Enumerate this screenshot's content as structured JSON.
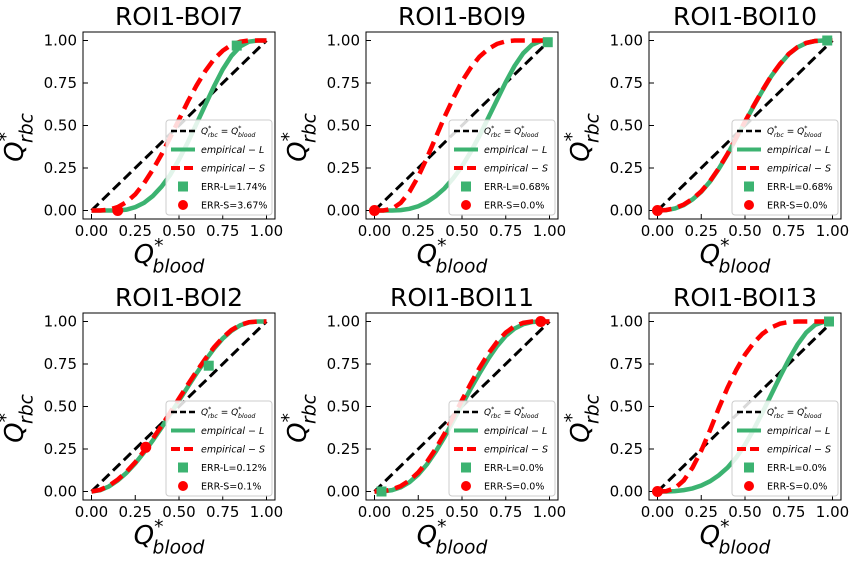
{
  "figure": {
    "colors": {
      "identity": "#000000",
      "empirical_L": "#3cb371",
      "empirical_S": "#ff0000",
      "axis": "#000000"
    },
    "legend_labels": {
      "identity": "Q*rbc = Q*blood",
      "empirical_L": "empirical − L",
      "empirical_S": "empirical − S"
    },
    "xlabel": "Q*blood",
    "ylabel": "Q*rbc"
  },
  "chart_data": [
    {
      "type": "line",
      "title": "ROI1-BOI7",
      "xlabel": "Q*blood",
      "ylabel": "Q*rbc",
      "xlim": [
        0,
        1
      ],
      "ylim": [
        0,
        1
      ],
      "xticks": [
        "0.00",
        "0.25",
        "0.50",
        "0.75",
        "1.00"
      ],
      "yticks": [
        "0.00",
        "0.25",
        "0.50",
        "0.75",
        "1.00"
      ],
      "legend_position": "lower right",
      "series": [
        {
          "name": "Q*rbc = Q*blood",
          "kind": "identity",
          "x": [
            0,
            1
          ],
          "y": [
            0,
            1
          ]
        },
        {
          "name": "empirical − L",
          "kind": "empirical_L",
          "x": [
            0.0,
            0.05,
            0.1,
            0.15,
            0.2,
            0.25,
            0.3,
            0.35,
            0.4,
            0.45,
            0.5,
            0.55,
            0.6,
            0.65,
            0.7,
            0.75,
            0.8,
            0.85,
            0.9,
            0.95,
            1.0
          ],
          "y": [
            0.0,
            0.0,
            0.0,
            0.0,
            0.005,
            0.02,
            0.045,
            0.085,
            0.14,
            0.21,
            0.3,
            0.4,
            0.51,
            0.62,
            0.73,
            0.83,
            0.91,
            0.965,
            0.993,
            1.0,
            1.0
          ]
        },
        {
          "name": "empirical − S",
          "kind": "empirical_S",
          "x": [
            0.0,
            0.05,
            0.1,
            0.15,
            0.2,
            0.25,
            0.3,
            0.35,
            0.4,
            0.45,
            0.5,
            0.55,
            0.6,
            0.65,
            0.7,
            0.75,
            0.8,
            0.85,
            0.9,
            0.95,
            1.0
          ],
          "y": [
            0.0,
            0.0,
            0.005,
            0.02,
            0.05,
            0.095,
            0.16,
            0.24,
            0.33,
            0.43,
            0.535,
            0.64,
            0.735,
            0.82,
            0.89,
            0.94,
            0.975,
            0.993,
            1.0,
            1.0,
            1.0
          ]
        },
        {
          "name": "ERR-L=1.74%",
          "kind": "marker_L",
          "x": [
            0.83
          ],
          "y": [
            0.97
          ]
        },
        {
          "name": "ERR-S=3.67%",
          "kind": "marker_S",
          "x": [
            0.15
          ],
          "y": [
            0.0
          ]
        }
      ]
    },
    {
      "type": "line",
      "title": "ROI1-BOI9",
      "xlabel": "Q*blood",
      "ylabel": "Q*rbc",
      "xlim": [
        0,
        1
      ],
      "ylim": [
        0,
        1
      ],
      "xticks": [
        "0.00",
        "0.25",
        "0.50",
        "0.75",
        "1.00"
      ],
      "yticks": [
        "0.00",
        "0.25",
        "0.50",
        "0.75",
        "1.00"
      ],
      "legend_position": "lower right",
      "series": [
        {
          "name": "Q*rbc = Q*blood",
          "kind": "identity",
          "x": [
            0,
            1
          ],
          "y": [
            0,
            1
          ]
        },
        {
          "name": "empirical − L",
          "kind": "empirical_L",
          "x": [
            0.0,
            0.05,
            0.1,
            0.15,
            0.2,
            0.25,
            0.3,
            0.35,
            0.4,
            0.45,
            0.5,
            0.55,
            0.6,
            0.65,
            0.7,
            0.75,
            0.8,
            0.85,
            0.9,
            0.95,
            1.0
          ],
          "y": [
            0.0,
            0.0,
            0.0,
            0.002,
            0.01,
            0.025,
            0.05,
            0.085,
            0.13,
            0.19,
            0.26,
            0.345,
            0.44,
            0.545,
            0.65,
            0.755,
            0.85,
            0.925,
            0.975,
            0.997,
            1.0
          ]
        },
        {
          "name": "empirical − S",
          "kind": "empirical_S",
          "x": [
            0.0,
            0.05,
            0.1,
            0.15,
            0.2,
            0.25,
            0.3,
            0.35,
            0.4,
            0.45,
            0.5,
            0.55,
            0.6,
            0.65,
            0.7,
            0.75,
            0.8,
            0.85,
            0.9,
            0.95,
            1.0
          ],
          "y": [
            0.0,
            0.0,
            0.01,
            0.045,
            0.11,
            0.2,
            0.31,
            0.43,
            0.55,
            0.66,
            0.76,
            0.84,
            0.905,
            0.95,
            0.98,
            0.995,
            1.0,
            1.0,
            1.0,
            1.0,
            1.0
          ]
        },
        {
          "name": "ERR-L=0.68%",
          "kind": "marker_L",
          "x": [
            0.99
          ],
          "y": [
            0.99
          ]
        },
        {
          "name": "ERR-S=0.0%",
          "kind": "marker_S",
          "x": [
            0.0
          ],
          "y": [
            0.0
          ]
        }
      ]
    },
    {
      "type": "line",
      "title": "ROI1-BOI10",
      "xlabel": "Q*blood",
      "ylabel": "Q*rbc",
      "xlim": [
        0,
        1
      ],
      "ylim": [
        0,
        1
      ],
      "xticks": [
        "0.00",
        "0.25",
        "0.50",
        "0.75",
        "1.00"
      ],
      "yticks": [
        "0.00",
        "0.25",
        "0.50",
        "0.75",
        "1.00"
      ],
      "legend_position": "lower right",
      "series": [
        {
          "name": "Q*rbc = Q*blood",
          "kind": "identity",
          "x": [
            0,
            1
          ],
          "y": [
            0,
            1
          ]
        },
        {
          "name": "empirical − L",
          "kind": "empirical_L",
          "x": [
            0.0,
            0.05,
            0.1,
            0.15,
            0.2,
            0.25,
            0.3,
            0.35,
            0.4,
            0.45,
            0.5,
            0.55,
            0.6,
            0.65,
            0.7,
            0.75,
            0.8,
            0.85,
            0.9,
            0.95,
            1.0
          ],
          "y": [
            0.0,
            0.002,
            0.012,
            0.032,
            0.065,
            0.11,
            0.17,
            0.245,
            0.33,
            0.425,
            0.52,
            0.615,
            0.705,
            0.79,
            0.86,
            0.92,
            0.96,
            0.985,
            0.997,
            1.0,
            1.0
          ]
        },
        {
          "name": "empirical − S",
          "kind": "empirical_S",
          "x": [
            0.0,
            0.05,
            0.1,
            0.15,
            0.2,
            0.25,
            0.3,
            0.35,
            0.4,
            0.45,
            0.5,
            0.55,
            0.6,
            0.65,
            0.7,
            0.75,
            0.8,
            0.85,
            0.9,
            0.95,
            1.0
          ],
          "y": [
            0.0,
            0.003,
            0.014,
            0.035,
            0.068,
            0.113,
            0.173,
            0.248,
            0.333,
            0.428,
            0.523,
            0.618,
            0.708,
            0.792,
            0.862,
            0.921,
            0.961,
            0.986,
            0.997,
            1.0,
            1.0
          ]
        },
        {
          "name": "ERR-L=0.68%",
          "kind": "marker_L",
          "x": [
            0.97
          ],
          "y": [
            1.0
          ]
        },
        {
          "name": "ERR-S=0.0%",
          "kind": "marker_S",
          "x": [
            0.0
          ],
          "y": [
            0.0
          ]
        }
      ]
    },
    {
      "type": "line",
      "title": "ROI1-BOI2",
      "xlabel": "Q*blood",
      "ylabel": "Q*rbc",
      "xlim": [
        0,
        1
      ],
      "ylim": [
        0,
        1
      ],
      "xticks": [
        "0.00",
        "0.25",
        "0.50",
        "0.75",
        "1.00"
      ],
      "yticks": [
        "0.00",
        "0.25",
        "0.50",
        "0.75",
        "1.00"
      ],
      "legend_position": "lower right",
      "series": [
        {
          "name": "Q*rbc = Q*blood",
          "kind": "identity",
          "x": [
            0,
            1
          ],
          "y": [
            0,
            1
          ]
        },
        {
          "name": "empirical − L",
          "kind": "empirical_L",
          "x": [
            0.0,
            0.05,
            0.1,
            0.15,
            0.2,
            0.25,
            0.3,
            0.35,
            0.4,
            0.45,
            0.5,
            0.55,
            0.6,
            0.65,
            0.7,
            0.75,
            0.8,
            0.85,
            0.9,
            0.95,
            1.0
          ],
          "y": [
            0.0,
            0.008,
            0.03,
            0.065,
            0.11,
            0.165,
            0.23,
            0.3,
            0.375,
            0.455,
            0.535,
            0.615,
            0.695,
            0.77,
            0.84,
            0.9,
            0.945,
            0.978,
            0.995,
            1.0,
            1.0
          ]
        },
        {
          "name": "empirical − S",
          "kind": "empirical_S",
          "x": [
            0.0,
            0.05,
            0.1,
            0.15,
            0.2,
            0.25,
            0.3,
            0.35,
            0.4,
            0.45,
            0.5,
            0.55,
            0.6,
            0.65,
            0.7,
            0.75,
            0.8,
            0.85,
            0.9,
            0.95,
            1.0
          ],
          "y": [
            0.0,
            0.01,
            0.034,
            0.07,
            0.116,
            0.172,
            0.238,
            0.31,
            0.386,
            0.466,
            0.547,
            0.628,
            0.706,
            0.78,
            0.848,
            0.905,
            0.95,
            0.98,
            0.996,
            1.0,
            1.0
          ]
        },
        {
          "name": "ERR-L=0.12%",
          "kind": "marker_L",
          "x": [
            0.67
          ],
          "y": [
            0.74
          ]
        },
        {
          "name": "ERR-S=0.1%",
          "kind": "marker_S",
          "x": [
            0.31
          ],
          "y": [
            0.26
          ]
        }
      ]
    },
    {
      "type": "line",
      "title": "ROI1-BOI11",
      "xlabel": "Q*blood",
      "ylabel": "Q*rbc",
      "xlim": [
        0,
        1
      ],
      "ylim": [
        0,
        1
      ],
      "xticks": [
        "0.00",
        "0.25",
        "0.50",
        "0.75",
        "1.00"
      ],
      "yticks": [
        "0.00",
        "0.25",
        "0.50",
        "0.75",
        "1.00"
      ],
      "legend_position": "lower right",
      "series": [
        {
          "name": "Q*rbc = Q*blood",
          "kind": "identity",
          "x": [
            0,
            1
          ],
          "y": [
            0,
            1
          ]
        },
        {
          "name": "empirical − L",
          "kind": "empirical_L",
          "x": [
            0.0,
            0.05,
            0.1,
            0.15,
            0.2,
            0.25,
            0.3,
            0.35,
            0.4,
            0.45,
            0.5,
            0.55,
            0.6,
            0.65,
            0.7,
            0.75,
            0.8,
            0.85,
            0.9,
            0.95,
            1.0
          ],
          "y": [
            0.0,
            0.001,
            0.008,
            0.025,
            0.055,
            0.1,
            0.16,
            0.235,
            0.32,
            0.415,
            0.51,
            0.605,
            0.695,
            0.78,
            0.855,
            0.915,
            0.958,
            0.984,
            0.997,
            1.0,
            1.0
          ]
        },
        {
          "name": "empirical − S",
          "kind": "empirical_S",
          "x": [
            0.0,
            0.05,
            0.1,
            0.15,
            0.2,
            0.25,
            0.3,
            0.35,
            0.4,
            0.45,
            0.5,
            0.55,
            0.6,
            0.65,
            0.7,
            0.75,
            0.8,
            0.85,
            0.9,
            0.95,
            1.0
          ],
          "y": [
            0.0,
            0.002,
            0.012,
            0.032,
            0.065,
            0.112,
            0.175,
            0.252,
            0.34,
            0.438,
            0.537,
            0.635,
            0.727,
            0.81,
            0.88,
            0.935,
            0.972,
            0.992,
            1.0,
            1.0,
            1.0
          ]
        },
        {
          "name": "ERR-L=0.0%",
          "kind": "marker_L",
          "x": [
            0.04
          ],
          "y": [
            0.0
          ]
        },
        {
          "name": "ERR-S=0.0%",
          "kind": "marker_S",
          "x": [
            0.95
          ],
          "y": [
            1.0
          ]
        }
      ]
    },
    {
      "type": "line",
      "title": "ROI1-BOI13",
      "xlabel": "Q*blood",
      "ylabel": "Q*rbc",
      "xlim": [
        0,
        1
      ],
      "ylim": [
        0,
        1
      ],
      "xticks": [
        "0.00",
        "0.25",
        "0.50",
        "0.75",
        "1.00"
      ],
      "yticks": [
        "0.00",
        "0.25",
        "0.50",
        "0.75",
        "1.00"
      ],
      "legend_position": "lower right",
      "series": [
        {
          "name": "Q*rbc = Q*blood",
          "kind": "identity",
          "x": [
            0,
            1
          ],
          "y": [
            0,
            1
          ]
        },
        {
          "name": "empirical − L",
          "kind": "empirical_L",
          "x": [
            0.0,
            0.05,
            0.1,
            0.15,
            0.2,
            0.25,
            0.3,
            0.35,
            0.4,
            0.45,
            0.5,
            0.55,
            0.6,
            0.65,
            0.7,
            0.75,
            0.8,
            0.85,
            0.9,
            0.95,
            1.0
          ],
          "y": [
            0.0,
            0.0,
            0.002,
            0.008,
            0.018,
            0.035,
            0.06,
            0.095,
            0.14,
            0.2,
            0.275,
            0.365,
            0.465,
            0.57,
            0.675,
            0.775,
            0.865,
            0.935,
            0.98,
            0.998,
            1.0
          ]
        },
        {
          "name": "empirical − S",
          "kind": "empirical_S",
          "x": [
            0.0,
            0.05,
            0.1,
            0.15,
            0.2,
            0.25,
            0.3,
            0.35,
            0.4,
            0.45,
            0.5,
            0.55,
            0.6,
            0.65,
            0.7,
            0.75,
            0.8,
            0.85,
            0.9,
            0.95,
            1.0
          ],
          "y": [
            0.0,
            0.002,
            0.02,
            0.065,
            0.14,
            0.24,
            0.36,
            0.49,
            0.61,
            0.715,
            0.805,
            0.875,
            0.928,
            0.965,
            0.987,
            0.997,
            1.0,
            1.0,
            1.0,
            1.0,
            1.0
          ]
        },
        {
          "name": "ERR-L=0.0%",
          "kind": "marker_L",
          "x": [
            0.98
          ],
          "y": [
            1.0
          ]
        },
        {
          "name": "ERR-S=0.0%",
          "kind": "marker_S",
          "x": [
            0.0
          ],
          "y": [
            0.0
          ]
        }
      ]
    }
  ]
}
